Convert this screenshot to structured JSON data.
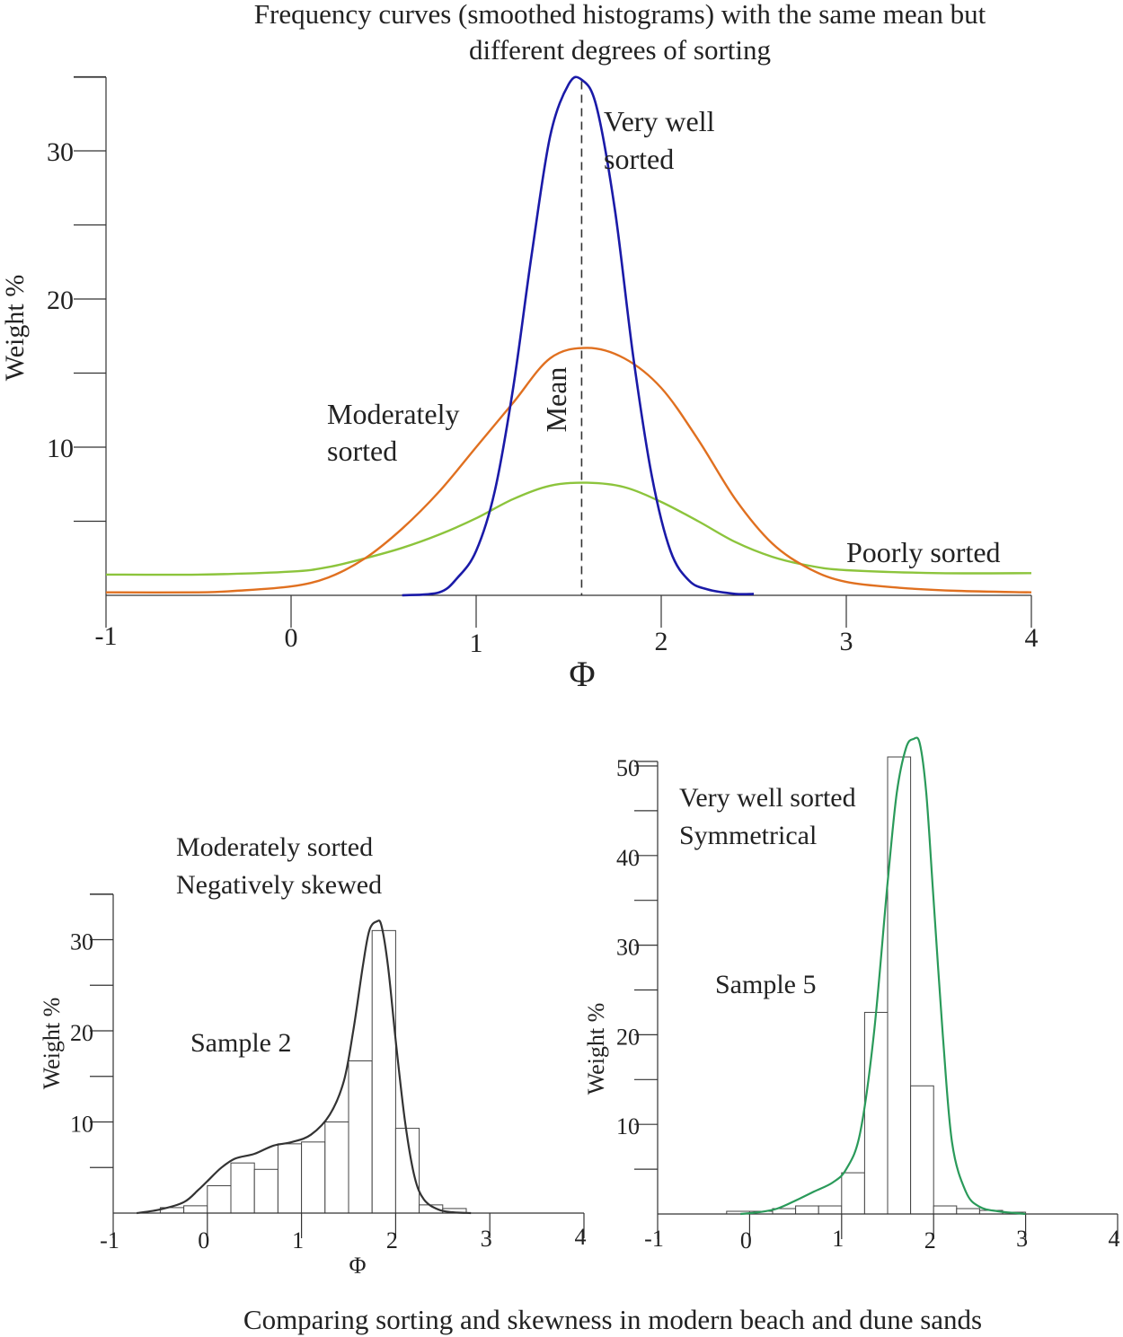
{
  "figure": {
    "title_line1": "Frequency curves (smoothed histograms) with the same mean but",
    "title_line2": "different degrees of sorting",
    "caption": "Comparing sorting and skewness in modern beach and dune sands"
  },
  "chart_data": [
    {
      "type": "line",
      "ylabel": "Weight %",
      "xlabel": "Φ",
      "xlim": [
        -1,
        4
      ],
      "ylim": [
        0,
        35
      ],
      "x_ticks": [
        "-1",
        "0",
        "1",
        "2",
        "3",
        "4"
      ],
      "y_ticks": [
        "10",
        "20",
        "30"
      ],
      "mean_label": "Mean",
      "mean_x": 1.57,
      "annotations": {
        "very_well_line1": "Very well",
        "very_well_line2": "sorted",
        "moderately_line1": "Moderately",
        "moderately_line2": "sorted",
        "poorly": "Poorly sorted"
      },
      "series": [
        {
          "key": "very_well",
          "color": "#1a1aa8",
          "x": [
            0.6,
            0.8,
            0.9,
            1.0,
            1.1,
            1.2,
            1.3,
            1.4,
            1.5,
            1.57,
            1.65,
            1.75,
            1.85,
            1.95,
            2.05,
            2.15,
            2.25,
            2.4,
            2.5
          ],
          "y": [
            0,
            0.2,
            1.2,
            3.0,
            7.0,
            14.0,
            23.0,
            31.0,
            34.5,
            34.8,
            33.0,
            26.0,
            16.0,
            8.0,
            3.0,
            1.0,
            0.4,
            0.1,
            0.1
          ]
        },
        {
          "key": "moderately",
          "color": "#e07020",
          "x": [
            -1.0,
            -0.5,
            -0.3,
            0.0,
            0.2,
            0.4,
            0.6,
            0.8,
            1.0,
            1.2,
            1.4,
            1.6,
            1.8,
            2.0,
            2.2,
            2.4,
            2.6,
            2.8,
            3.0,
            3.3,
            3.6,
            4.0
          ],
          "y": [
            0.2,
            0.2,
            0.3,
            0.6,
            1.2,
            2.5,
            4.5,
            7.0,
            10.0,
            13.0,
            16.0,
            16.7,
            16.0,
            14.0,
            10.5,
            6.5,
            3.5,
            1.8,
            0.9,
            0.5,
            0.3,
            0.2
          ]
        },
        {
          "key": "poorly",
          "color": "#8cc43c",
          "x": [
            -1.0,
            -0.5,
            0.0,
            0.2,
            0.4,
            0.6,
            0.8,
            1.0,
            1.2,
            1.4,
            1.6,
            1.8,
            2.0,
            2.2,
            2.4,
            2.6,
            2.8,
            3.0,
            3.5,
            4.0
          ],
          "y": [
            1.4,
            1.4,
            1.6,
            1.9,
            2.5,
            3.2,
            4.1,
            5.2,
            6.5,
            7.4,
            7.6,
            7.3,
            6.3,
            5.0,
            3.6,
            2.6,
            2.0,
            1.7,
            1.5,
            1.5
          ]
        }
      ]
    },
    {
      "type": "bar",
      "ylabel": "Weight %",
      "xlabel": "Φ",
      "xlim": [
        -1,
        4
      ],
      "ylim": [
        0,
        35
      ],
      "x_ticks": [
        "-1",
        "0",
        "1",
        "2",
        "3",
        "4"
      ],
      "y_ticks": [
        "10",
        "20",
        "30"
      ],
      "title_line1": "Moderately sorted",
      "title_line2": "Negatively skewed",
      "sample_label": "Sample 2",
      "bin_width": 0.25,
      "bin_starts": [
        -0.5,
        -0.25,
        0.0,
        0.25,
        0.5,
        0.75,
        1.0,
        1.25,
        1.5,
        1.75,
        2.0,
        2.25,
        2.5
      ],
      "values": [
        0.6,
        0.8,
        3.0,
        5.5,
        4.8,
        7.6,
        7.8,
        10.0,
        16.7,
        31.0,
        9.3,
        0.9,
        0.5
      ],
      "curve": {
        "color": "#333333",
        "x": [
          -0.75,
          -0.5,
          -0.25,
          -0.1,
          0.0,
          0.15,
          0.3,
          0.5,
          0.7,
          0.9,
          1.1,
          1.3,
          1.45,
          1.55,
          1.65,
          1.72,
          1.8,
          1.85,
          1.92,
          2.0,
          2.1,
          2.2,
          2.3,
          2.45,
          2.6,
          2.8
        ],
        "y": [
          0,
          0.4,
          1.2,
          2.5,
          3.5,
          5.0,
          6.0,
          6.5,
          7.4,
          7.8,
          8.6,
          10.8,
          14.5,
          20.0,
          27.0,
          31.0,
          32.0,
          31.5,
          27.0,
          19.0,
          10.0,
          4.0,
          1.5,
          0.4,
          0.1,
          0
        ]
      }
    },
    {
      "type": "bar",
      "ylabel": "Weight %",
      "xlabel": "",
      "xlim": [
        -1,
        4
      ],
      "ylim": [
        0,
        50
      ],
      "x_ticks": [
        "-1",
        "0",
        "1",
        "2",
        "3",
        "4"
      ],
      "y_ticks": [
        "10",
        "20",
        "30",
        "40",
        "50"
      ],
      "title_line1": "Very well sorted",
      "title_line2": "Symmetrical",
      "sample_label": "Sample 5",
      "bin_width": 0.25,
      "bin_starts": [
        -0.25,
        0.0,
        0.25,
        0.5,
        0.75,
        1.0,
        1.25,
        1.5,
        1.75,
        2.0,
        2.25,
        2.5,
        2.75
      ],
      "values": [
        0.3,
        0.3,
        0.6,
        0.9,
        0.9,
        4.6,
        22.5,
        51.0,
        14.3,
        0.9,
        0.6,
        0.4,
        0.2
      ],
      "curve": {
        "color": "#2a9a5a",
        "x": [
          -0.1,
          0.1,
          0.3,
          0.5,
          0.7,
          0.9,
          1.05,
          1.2,
          1.35,
          1.5,
          1.6,
          1.7,
          1.78,
          1.85,
          1.92,
          2.0,
          2.1,
          2.2,
          2.35,
          2.5,
          2.7,
          2.9,
          3.0
        ],
        "y": [
          0,
          0.2,
          0.6,
          1.5,
          2.5,
          3.5,
          5.0,
          9.0,
          20.0,
          37.0,
          47.0,
          52.0,
          53.0,
          52.5,
          47.0,
          35.0,
          20.0,
          8.0,
          2.5,
          0.8,
          0.3,
          0.1,
          0
        ]
      }
    }
  ]
}
